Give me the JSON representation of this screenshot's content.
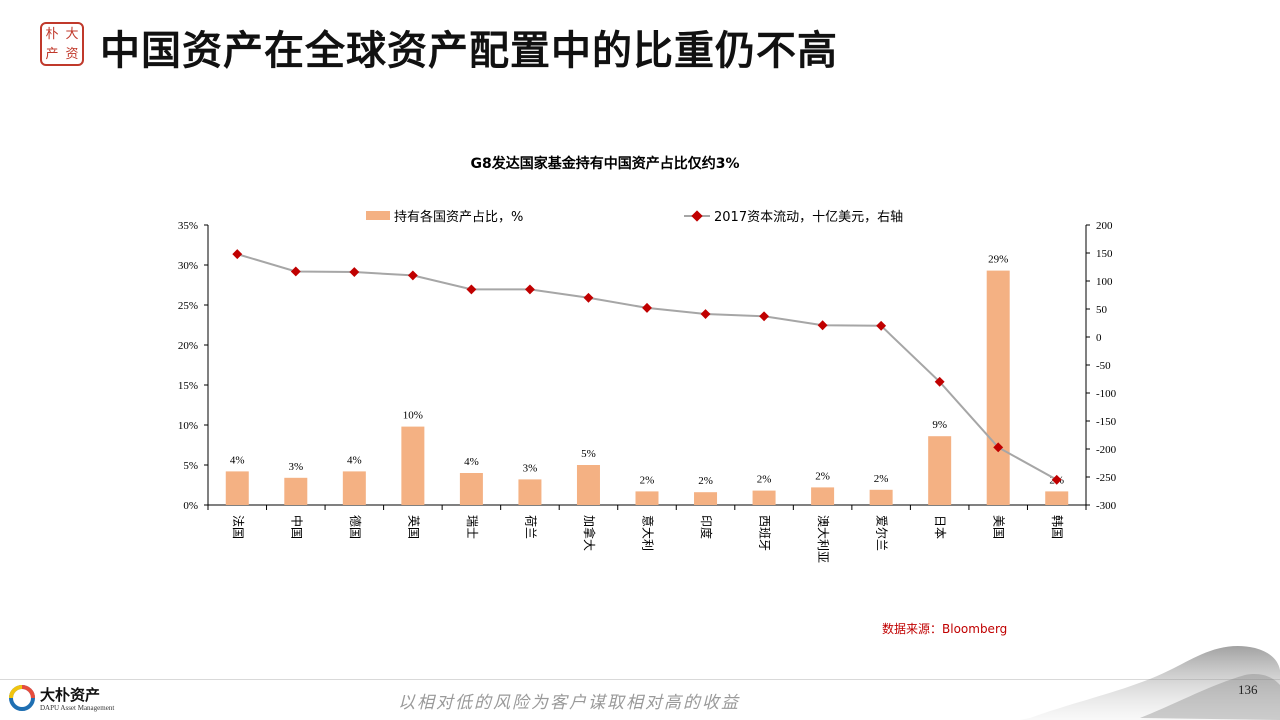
{
  "slide": {
    "title": "中国资产在全球资产配置中的比重仍不高",
    "logo_chars": [
      "大",
      "朴",
      "资",
      "产"
    ],
    "page_number": "136"
  },
  "footer": {
    "company_name": "大朴资产",
    "company_en": "DAPU Asset Management",
    "slogan": "以相对低的风险为客户谋取相对高的收益",
    "source": "数据来源：Bloomberg"
  },
  "colors": {
    "bar": "#f4b183",
    "line": "#a6a6a6",
    "marker": "#c00000",
    "accent": "#c0392b"
  },
  "chart_data": {
    "type": "bar",
    "title": "G8发达国家基金持有中国资产占比仅约3%",
    "categories": [
      "法国",
      "中国",
      "德国",
      "英国",
      "瑞士",
      "荷兰",
      "加拿大",
      "意大利",
      "印度",
      "西班牙",
      "澳大利亚",
      "爱尔兰",
      "日本",
      "美国",
      "韩国"
    ],
    "series": [
      {
        "name": "持有各国资产占比，%",
        "type": "bar",
        "axis": "left",
        "values": [
          4.2,
          3.4,
          4.2,
          9.8,
          4.0,
          3.2,
          5.0,
          1.7,
          1.6,
          1.8,
          2.2,
          1.9,
          8.6,
          29.3,
          1.7
        ],
        "labels": [
          "4%",
          "3%",
          "4%",
          "10%",
          "4%",
          "3%",
          "5%",
          "2%",
          "2%",
          "2%",
          "2%",
          "2%",
          "9%",
          "29%",
          "2%"
        ]
      },
      {
        "name": "2017资本流动，十亿美元，右轴",
        "type": "line",
        "axis": "right",
        "values": [
          148,
          117,
          116,
          110,
          85,
          85,
          70,
          52,
          41,
          37,
          21,
          20,
          -80,
          -197,
          -255
        ]
      }
    ],
    "y_left": {
      "min": 0,
      "max": 35,
      "step": 5,
      "tick_labels": [
        "0%",
        "5%",
        "10%",
        "15%",
        "20%",
        "25%",
        "30%",
        "35%"
      ]
    },
    "y_right": {
      "min": -300,
      "max": 200,
      "step": 50,
      "tick_labels": [
        "-300",
        "-250",
        "-200",
        "-150",
        "-100",
        "-50",
        "0",
        "50",
        "100",
        "150",
        "200"
      ]
    },
    "legend_position": "top",
    "grid": false
  }
}
